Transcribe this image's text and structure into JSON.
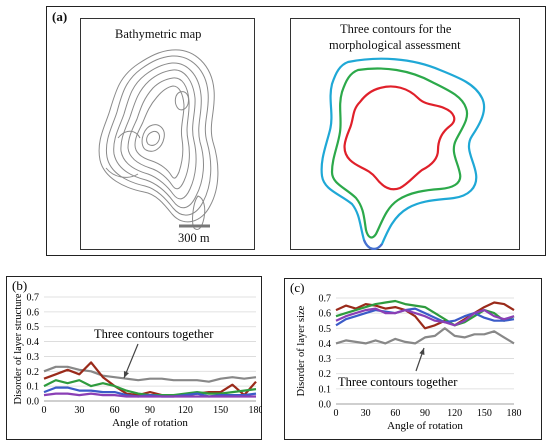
{
  "panel_a": {
    "label": "(a)",
    "left_title": "Bathymetric map",
    "right_title_line1": "Three contours for the",
    "right_title_line2": "morphological assessment",
    "scale_label": "300 m",
    "contour_colors": {
      "outer": "#1fa8d6",
      "middle": "#2ca94a",
      "inner": "#e0202a",
      "tail": "#4a6fd0"
    }
  },
  "chart_data": [
    {
      "type": "line",
      "panel_label": "(b)",
      "xlabel": "Angle of rotation",
      "ylabel": "Disorder of layer structure",
      "xlim": [
        0,
        180
      ],
      "ylim": [
        0,
        0.7
      ],
      "xticks": [
        0,
        30,
        60,
        90,
        120,
        150,
        180
      ],
      "yticks": [
        "0.0",
        "0.1",
        "0.2",
        "0.3",
        "0.4",
        "0.5",
        "0.6",
        "0.7"
      ],
      "annotation": "Three contours together",
      "grid": "horizontal",
      "x": [
        0,
        10,
        20,
        30,
        40,
        50,
        60,
        70,
        80,
        90,
        100,
        110,
        120,
        130,
        140,
        150,
        160,
        170,
        180
      ],
      "series": [
        {
          "color": "#888888",
          "values": [
            0.2,
            0.23,
            0.23,
            0.21,
            0.2,
            0.17,
            0.16,
            0.15,
            0.14,
            0.15,
            0.15,
            0.14,
            0.14,
            0.14,
            0.13,
            0.15,
            0.16,
            0.15,
            0.16
          ]
        },
        {
          "color": "#9a2a1a",
          "values": [
            0.15,
            0.18,
            0.21,
            0.18,
            0.26,
            0.16,
            0.1,
            0.05,
            0.04,
            0.06,
            0.04,
            0.04,
            0.04,
            0.05,
            0.06,
            0.06,
            0.11,
            0.04,
            0.13
          ]
        },
        {
          "color": "#2e9b3e",
          "values": [
            0.1,
            0.14,
            0.12,
            0.14,
            0.1,
            0.12,
            0.1,
            0.07,
            0.05,
            0.04,
            0.04,
            0.04,
            0.05,
            0.06,
            0.05,
            0.05,
            0.06,
            0.07,
            0.08
          ]
        },
        {
          "color": "#3b5bc8",
          "values": [
            0.06,
            0.09,
            0.09,
            0.07,
            0.07,
            0.06,
            0.06,
            0.04,
            0.03,
            0.04,
            0.03,
            0.03,
            0.04,
            0.05,
            0.03,
            0.04,
            0.04,
            0.04,
            0.05
          ]
        },
        {
          "color": "#8a3fb5",
          "values": [
            0.04,
            0.05,
            0.05,
            0.04,
            0.05,
            0.04,
            0.04,
            0.03,
            0.03,
            0.03,
            0.03,
            0.03,
            0.03,
            0.03,
            0.03,
            0.03,
            0.03,
            0.03,
            0.03
          ]
        }
      ]
    },
    {
      "type": "line",
      "panel_label": "(c)",
      "xlabel": "Angle of rotation",
      "ylabel": "Disorder of layer size",
      "xlim": [
        0,
        180
      ],
      "ylim": [
        0,
        0.7
      ],
      "xticks": [
        0,
        30,
        60,
        90,
        120,
        150,
        180
      ],
      "yticks": [
        "0.0",
        "0.1",
        "0.2",
        "0.3",
        "0.4",
        "0.5",
        "0.6",
        "0.7"
      ],
      "annotation": "Three contours together",
      "grid": "horizontal",
      "x": [
        0,
        10,
        20,
        30,
        40,
        50,
        60,
        70,
        80,
        90,
        100,
        110,
        120,
        130,
        140,
        150,
        160,
        170,
        180
      ],
      "series": [
        {
          "color": "#888888",
          "values": [
            0.4,
            0.42,
            0.41,
            0.4,
            0.42,
            0.4,
            0.43,
            0.41,
            0.4,
            0.44,
            0.45,
            0.5,
            0.45,
            0.44,
            0.46,
            0.46,
            0.48,
            0.44,
            0.4
          ]
        },
        {
          "color": "#9a2a1a",
          "values": [
            0.62,
            0.65,
            0.63,
            0.66,
            0.65,
            0.63,
            0.64,
            0.62,
            0.58,
            0.5,
            0.52,
            0.55,
            0.52,
            0.56,
            0.6,
            0.64,
            0.67,
            0.66,
            0.62
          ]
        },
        {
          "color": "#2e9b3e",
          "values": [
            0.58,
            0.6,
            0.62,
            0.64,
            0.66,
            0.67,
            0.68,
            0.66,
            0.65,
            0.64,
            0.6,
            0.56,
            0.52,
            0.54,
            0.58,
            0.62,
            0.6,
            0.55,
            0.58
          ]
        },
        {
          "color": "#3b5bc8",
          "values": [
            0.52,
            0.56,
            0.58,
            0.6,
            0.62,
            0.61,
            0.6,
            0.62,
            0.63,
            0.6,
            0.57,
            0.54,
            0.55,
            0.58,
            0.6,
            0.57,
            0.55,
            0.55,
            0.56
          ]
        },
        {
          "color": "#8a3fb5",
          "values": [
            0.55,
            0.58,
            0.6,
            0.62,
            0.63,
            0.6,
            0.6,
            0.62,
            0.6,
            0.58,
            0.55,
            0.54,
            0.52,
            0.55,
            0.6,
            0.62,
            0.58,
            0.56,
            0.58
          ]
        }
      ]
    }
  ]
}
